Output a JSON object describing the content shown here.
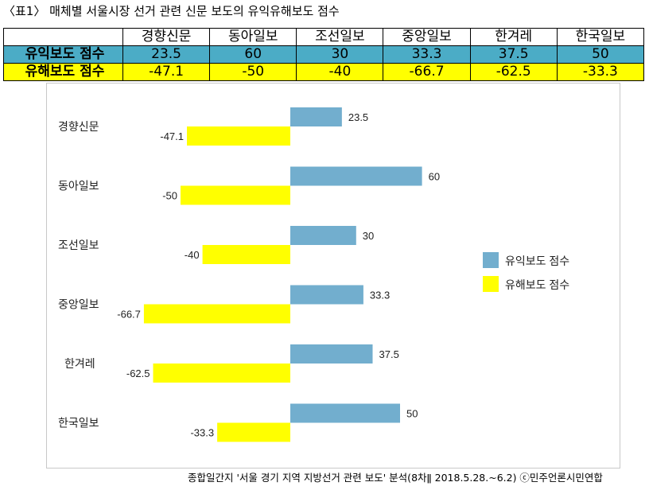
{
  "title": "〈표1〉 매체별 서울시장 선거 관련 신문 보도의 유익유해보도 점수",
  "table": {
    "columns": [
      "경향신문",
      "동아일보",
      "조선일보",
      "중앙일보",
      "한겨레",
      "한국일보"
    ],
    "rows": [
      {
        "label": "유익보도 점수",
        "values": [
          "23.5",
          "60",
          "30",
          "33.3",
          "37.5",
          "50"
        ]
      },
      {
        "label": "유해보도 점수",
        "values": [
          "-47.1",
          "-50",
          "-40",
          "-66.7",
          "-62.5",
          "-33.3"
        ]
      }
    ]
  },
  "colors": {
    "positive": "#72aece",
    "negative": "#ffff00",
    "table_positive": "#4bacc6",
    "table_negative": "#ffff00"
  },
  "chart_data": {
    "type": "bar",
    "orientation": "horizontal",
    "categories": [
      "경향신문",
      "동아일보",
      "조선일보",
      "중앙일보",
      "한겨레",
      "한국일보"
    ],
    "series": [
      {
        "name": "유익보도 점수",
        "values": [
          23.5,
          60,
          30,
          33.3,
          37.5,
          50
        ]
      },
      {
        "name": "유해보도 점수",
        "values": [
          -47.1,
          -50,
          -40,
          -66.7,
          -62.5,
          -33.3
        ]
      }
    ],
    "value_labels": {
      "positive": [
        "23.5",
        "60",
        "30",
        "33.3",
        "37.5",
        "50"
      ],
      "negative": [
        "-47.1",
        "-50",
        "-40",
        "-66.7",
        "-62.5",
        "-33.3"
      ]
    },
    "xlim": [
      -70,
      70
    ],
    "grid": false,
    "legend": "right"
  },
  "footer": "종합일간지 '서울 경기 지역 지방선거 관련 보도' 분석(8차ǁ 2018.5.28.~6.2) ⓒ민주언론시민연합"
}
